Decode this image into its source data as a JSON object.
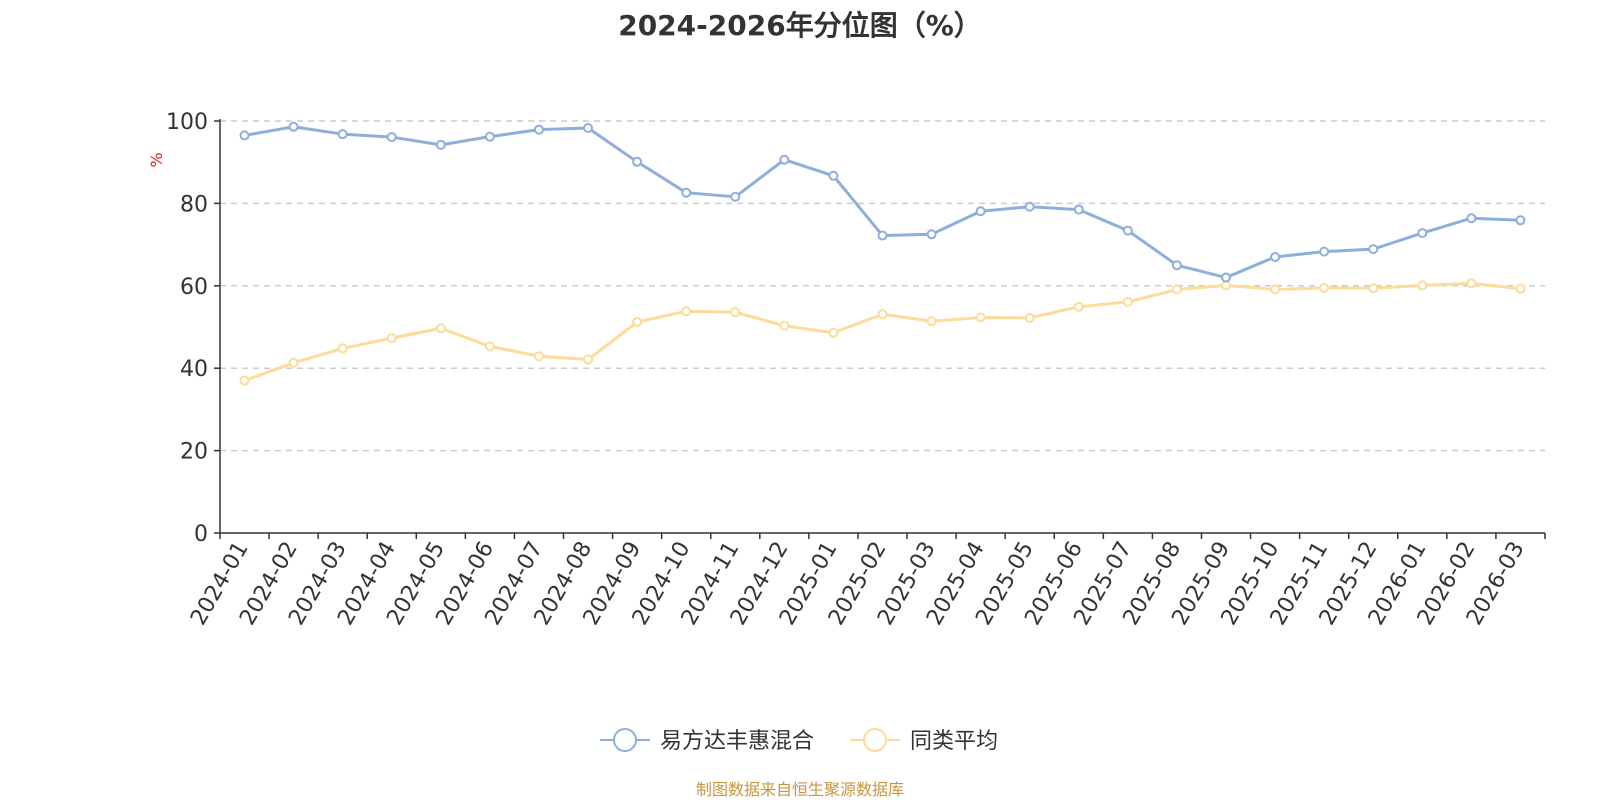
{
  "chart_data": {
    "type": "line",
    "title": "2024-2026年分位图（%）",
    "ylabel": "%",
    "ylim": [
      0,
      100
    ],
    "yticks": [
      0,
      20,
      40,
      60,
      80,
      100
    ],
    "grid": true,
    "legend_position": "bottom",
    "categories": [
      "2024-01",
      "2024-02",
      "2024-03",
      "2024-04",
      "2024-05",
      "2024-06",
      "2024-07",
      "2024-08",
      "2024-09",
      "2024-10",
      "2024-11",
      "2024-12",
      "2025-01",
      "2025-02",
      "2025-03",
      "2025-04",
      "2025-05",
      "2025-06",
      "2025-07",
      "2025-08",
      "2025-09",
      "2025-10",
      "2025-11",
      "2025-12",
      "2026-01",
      "2026-02",
      "2026-03"
    ],
    "series": [
      {
        "name": "易方达丰惠混合",
        "color": "#8eaedb",
        "values": [
          96.5,
          98.6,
          96.8,
          96.1,
          94.2,
          96.2,
          97.9,
          98.3,
          90.1,
          82.6,
          81.6,
          90.6,
          86.7,
          72.2,
          72.5,
          78.1,
          79.2,
          78.5,
          73.4,
          65.0,
          62.0,
          67.0,
          68.3,
          68.9,
          72.8,
          76.4,
          75.9
        ]
      },
      {
        "name": "同类平均",
        "color": "#fddb98",
        "values": [
          37.0,
          41.3,
          44.8,
          47.3,
          49.7,
          45.3,
          42.9,
          42.1,
          51.2,
          53.8,
          53.6,
          50.3,
          48.6,
          53.1,
          51.4,
          52.3,
          52.2,
          54.9,
          56.1,
          59.1,
          60.1,
          59.1,
          59.5,
          59.4,
          60.1,
          60.6,
          59.3
        ]
      }
    ]
  },
  "footer": {
    "credit": "制图数据来自恒生聚源数据库"
  }
}
